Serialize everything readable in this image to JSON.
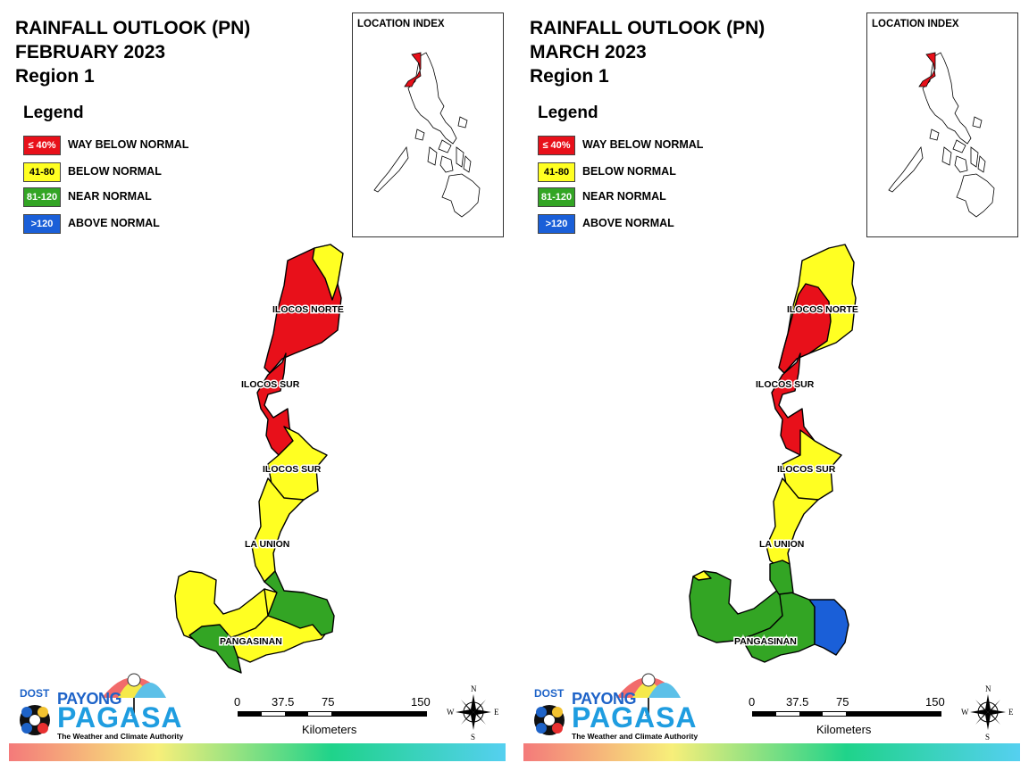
{
  "panels": [
    {
      "title_line1": "RAINFALL OUTLOOK (PN)",
      "title_line2": "FEBRUARY 2023",
      "title_line3": "Region 1",
      "legend_title": "Legend",
      "legend": [
        {
          "range": "≤ 40%",
          "label": "WAY BELOW NORMAL",
          "color": "#e8101a",
          "text_color": "#ffffff"
        },
        {
          "range": "41-80",
          "label": "BELOW NORMAL",
          "color": "#ffff22",
          "text_color": "#000000"
        },
        {
          "range": "81-120",
          "label": "NEAR NORMAL",
          "color": "#33a524",
          "text_color": "#ffffff"
        },
        {
          "range": ">120",
          "label": "ABOVE NORMAL",
          "color": "#1a5fd8",
          "text_color": "#ffffff"
        }
      ],
      "location_index_title": "LOCATION INDEX",
      "province_labels": {
        "ilocos_norte": "ILOCOS NORTE",
        "ilocos_sur_north": "ILOCOS SUR",
        "ilocos_sur_south": "ILOCOS SUR",
        "la_union": "LA UNION",
        "pangasinan": "PANGASINAN"
      },
      "map_fill": {
        "ilocos_norte_main": "#e8101a",
        "ilocos_norte_ne": "#ffff22",
        "ilocos_sur": "#e8101a",
        "abra_area": "#ffff22",
        "la_union": "#ffff22",
        "pangasinan_west": "#ffff22",
        "pangasinan_east": "#33a524",
        "pangasinan_center": "#ffff22",
        "pangasinan_south": "#33a524"
      }
    },
    {
      "title_line1": "RAINFALL OUTLOOK (PN)",
      "title_line2": "MARCH 2023",
      "title_line3": "Region 1",
      "legend_title": "Legend",
      "legend": [
        {
          "range": "≤ 40%",
          "label": "WAY BELOW NORMAL",
          "color": "#e8101a",
          "text_color": "#ffffff"
        },
        {
          "range": "41-80",
          "label": "BELOW NORMAL",
          "color": "#ffff22",
          "text_color": "#000000"
        },
        {
          "range": "81-120",
          "label": "NEAR NORMAL",
          "color": "#33a524",
          "text_color": "#ffffff"
        },
        {
          "range": ">120",
          "label": "ABOVE NORMAL",
          "color": "#1a5fd8",
          "text_color": "#ffffff"
        }
      ],
      "location_index_title": "LOCATION INDEX",
      "province_labels": {
        "ilocos_norte": "ILOCOS NORTE",
        "ilocos_sur_north": "ILOCOS SUR",
        "ilocos_sur_south": "ILOCOS SUR",
        "la_union": "LA UNION",
        "pangasinan": "PANGASINAN"
      },
      "map_fill": {
        "ilocos_norte_main": "#e8101a",
        "ilocos_norte_ne": "#ffff22",
        "ilocos_sur": "#e8101a",
        "abra_area": "#ffff22",
        "la_union": "#ffff22",
        "pangasinan_west": "#33a524",
        "pangasinan_east": "#1a5fd8",
        "pangasinan_center": "#33a524",
        "pangasinan_south": "#33a524"
      }
    }
  ],
  "scale_bar": {
    "ticks": [
      "0",
      "37.5",
      "75",
      "150"
    ],
    "unit": "Kilometers"
  },
  "compass": {
    "n": "N",
    "s": "S",
    "e": "E",
    "w": "W"
  },
  "logo": {
    "dost": "DOST",
    "payong": "PAYONG",
    "pagasa": "PAGASA",
    "tagline": "The Weather and Climate Authority"
  }
}
